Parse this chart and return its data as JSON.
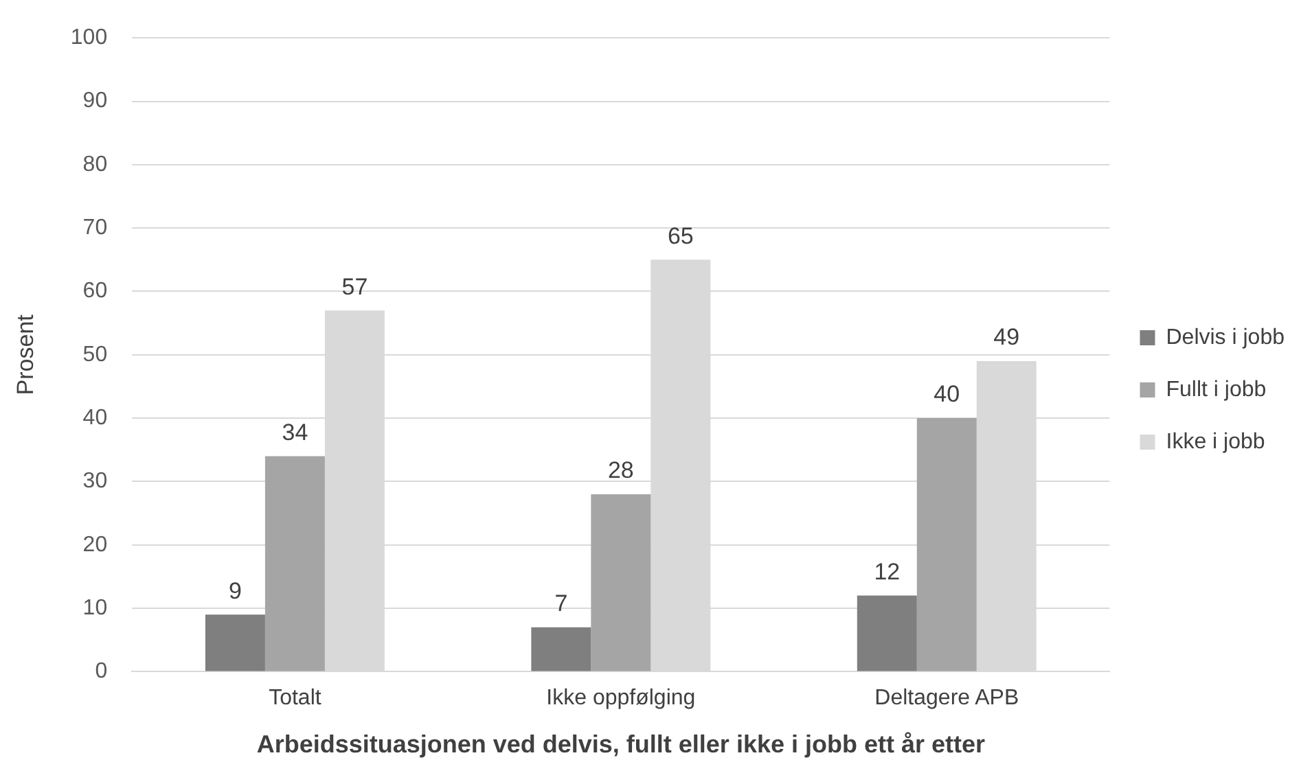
{
  "chart_data": {
    "type": "bar",
    "xlabel": "Arbeidssituasjonen ved delvis, fullt eller ikke i jobb ett år etter",
    "ylabel": "Prosent",
    "categories": [
      "Totalt",
      "Ikke oppfølging",
      "Deltagere APB"
    ],
    "series": [
      {
        "name": "Delvis i jobb",
        "color": "#7f7f7f",
        "values": [
          9,
          7,
          12
        ]
      },
      {
        "name": "Fullt i jobb",
        "color": "#a5a5a5",
        "values": [
          34,
          28,
          40
        ]
      },
      {
        "name": "Ikke i jobb",
        "color": "#d9d9d9",
        "values": [
          57,
          65,
          49
        ]
      }
    ],
    "ylim": [
      0,
      100
    ],
    "yticks": [
      0,
      10,
      20,
      30,
      40,
      50,
      60,
      70,
      80,
      90,
      100
    ],
    "grid": "y",
    "legend": "right",
    "data_labels": true
  }
}
